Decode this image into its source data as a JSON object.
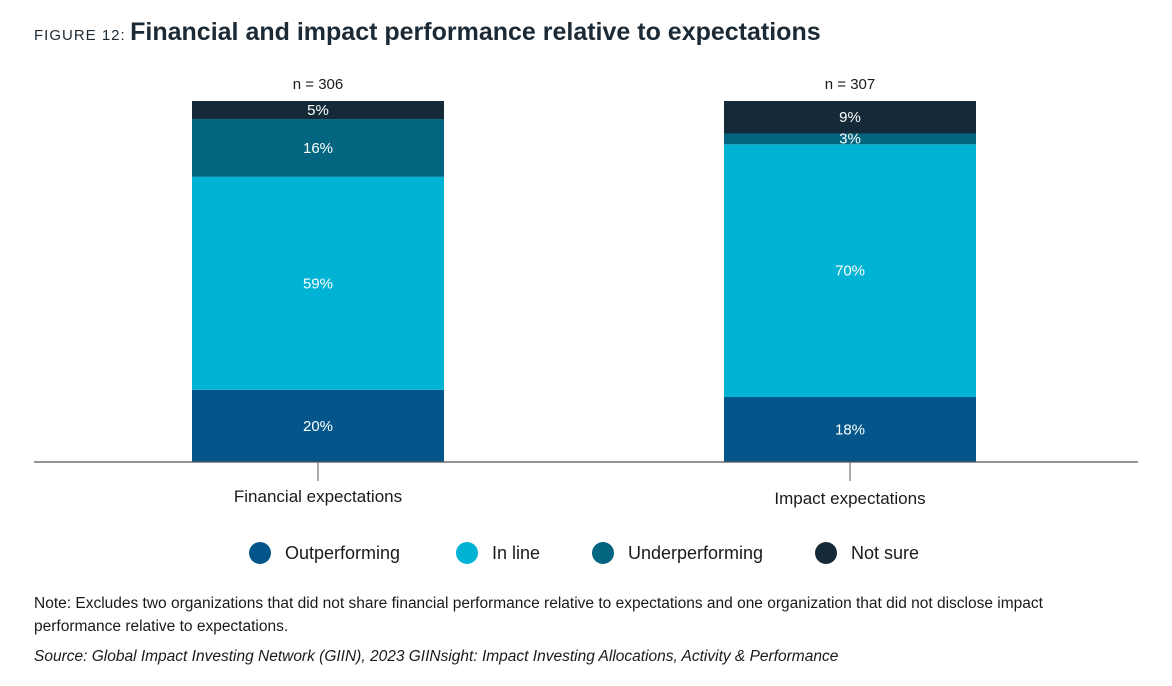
{
  "figure": {
    "label": "FIGURE 12:",
    "title": "Financial and impact performance relative to expectations"
  },
  "chart_data": {
    "type": "bar",
    "stacked": true,
    "categories": [
      "Financial expectations",
      "Impact expectations"
    ],
    "n_labels": [
      "n = 306",
      "n = 307"
    ],
    "ylim": [
      0,
      100
    ],
    "grid": false,
    "legend_position": "bottom",
    "series": [
      {
        "name": "Outperforming",
        "color": "#04568a",
        "values": [
          20,
          18
        ],
        "labels": [
          "20%",
          "18%"
        ]
      },
      {
        "name": "In line",
        "color": "#00b2d3",
        "values": [
          59,
          70
        ],
        "labels": [
          "59%",
          "70%"
        ]
      },
      {
        "name": "Underperforming",
        "color": "#03657f",
        "values": [
          16,
          3
        ],
        "labels": [
          "16%",
          "3%"
        ]
      },
      {
        "name": "Not sure",
        "color": "#152a39",
        "values": [
          5,
          9
        ],
        "labels": [
          "5%",
          "9%"
        ]
      }
    ]
  },
  "note": "Note: Excludes two organizations that did not share financial performance relative to expectations and one organization that did not disclose impact performance relative to expectations.",
  "source": "Source: Global Impact Investing Network (GIIN), 2023 GIINsight: Impact Investing Allocations, Activity & Performance"
}
